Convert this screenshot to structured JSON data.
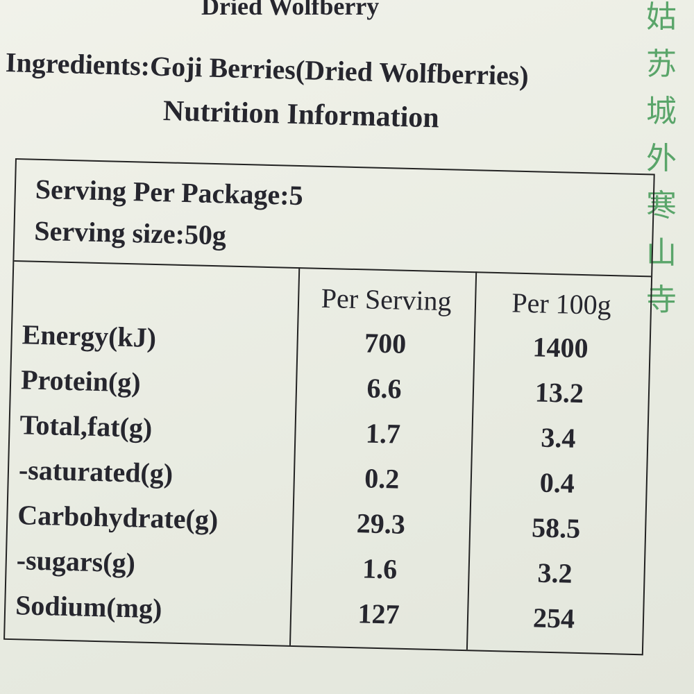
{
  "header": {
    "product": "Dried Wolfberry",
    "ingredients": "Ingredients:Goji Berries(Dried Wolfberries)",
    "section_title": "Nutrition Information"
  },
  "side_text": [
    "姑",
    "苏",
    "城",
    "外",
    "寒",
    "山",
    "寺"
  ],
  "table": {
    "serving_per_package": "Serving Per Package:5",
    "serving_size": "Serving size:50g",
    "columns": [
      "Per Serving",
      "Per 100g"
    ],
    "rows": [
      [
        "Energy(kJ)",
        "700",
        "1400"
      ],
      [
        "Protein(g)",
        "6.6",
        "13.2"
      ],
      [
        "Total,fat(g)",
        "1.7",
        "3.4"
      ],
      [
        "-saturated(g)",
        "0.2",
        "0.4"
      ],
      [
        "Carbohydrate(g)",
        "29.3",
        "58.5"
      ],
      [
        "-sugars(g)",
        "1.6",
        "3.2"
      ],
      [
        "Sodium(mg)",
        "127",
        "254"
      ]
    ]
  }
}
